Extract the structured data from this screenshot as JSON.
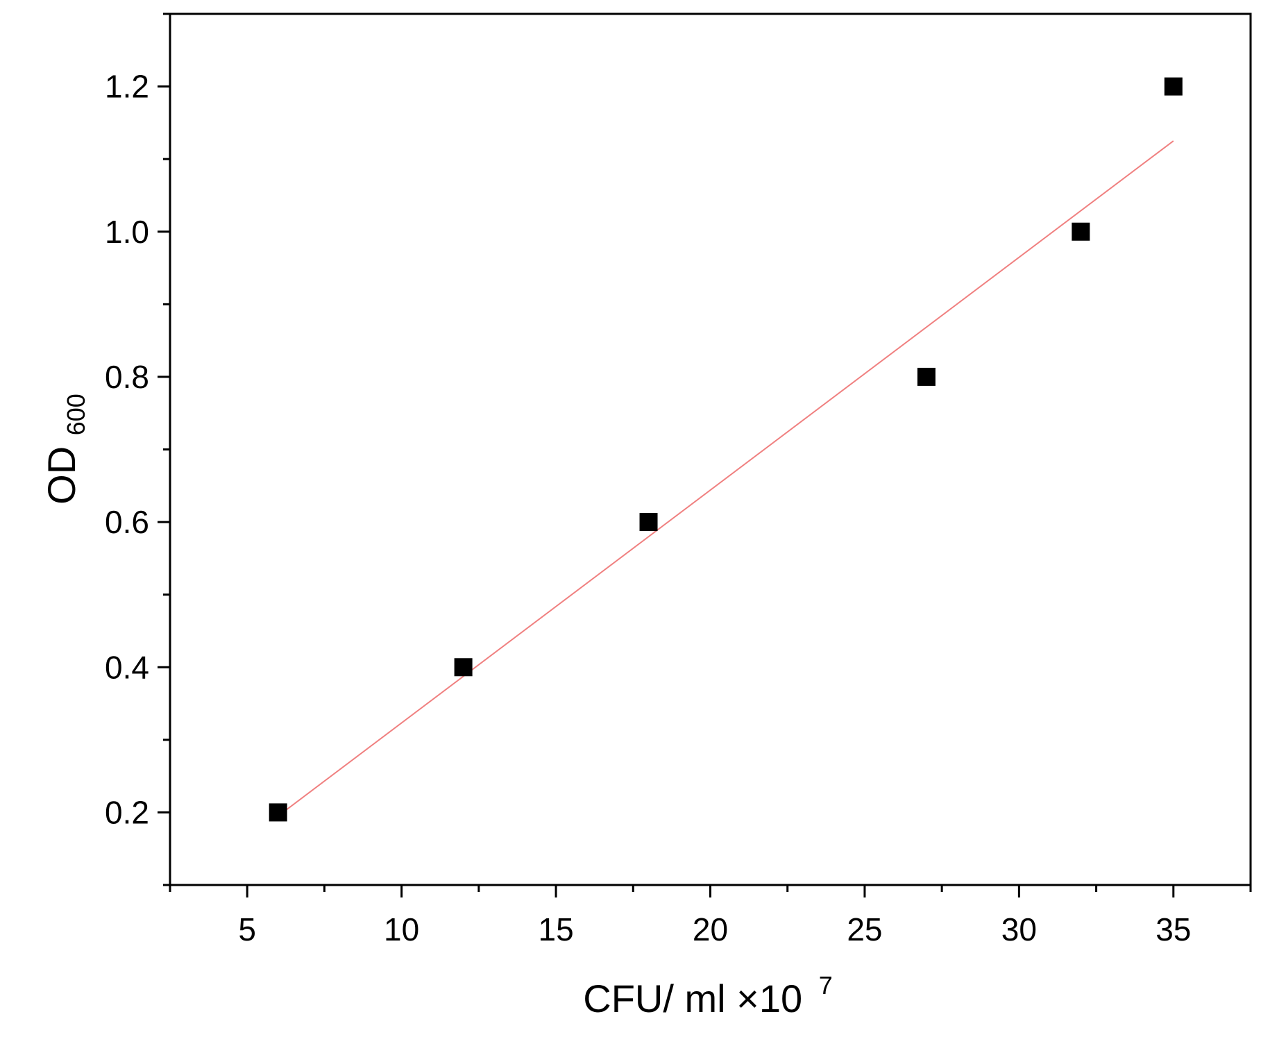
{
  "chart_data": {
    "type": "scatter",
    "xlabel": "CFU/ ml ×10",
    "xlabel_superscript": "7",
    "ylabel": "OD",
    "ylabel_subscript": "600",
    "xlim": [
      2.5,
      37.5
    ],
    "ylim": [
      0.1,
      1.3
    ],
    "x_ticks": [
      5,
      10,
      15,
      20,
      25,
      30,
      35
    ],
    "y_ticks": [
      0.2,
      0.4,
      0.6,
      0.8,
      1.0,
      1.2
    ],
    "x_tick_labels": [
      "5",
      "10",
      "15",
      "20",
      "25",
      "30",
      "35"
    ],
    "y_tick_labels": [
      "0.2",
      "0.4",
      "0.6",
      "0.8",
      "1.0",
      "1.2"
    ],
    "grid": false,
    "series": [
      {
        "x": [
          6,
          12,
          18,
          27,
          32,
          35
        ],
        "y": [
          0.2,
          0.4,
          0.6,
          0.8,
          1.0,
          1.2
        ],
        "marker": "square",
        "color": "#000000"
      }
    ],
    "fit_line": {
      "x": [
        6,
        35
      ],
      "y": [
        0.195,
        1.125
      ],
      "color": "#f08080"
    }
  }
}
